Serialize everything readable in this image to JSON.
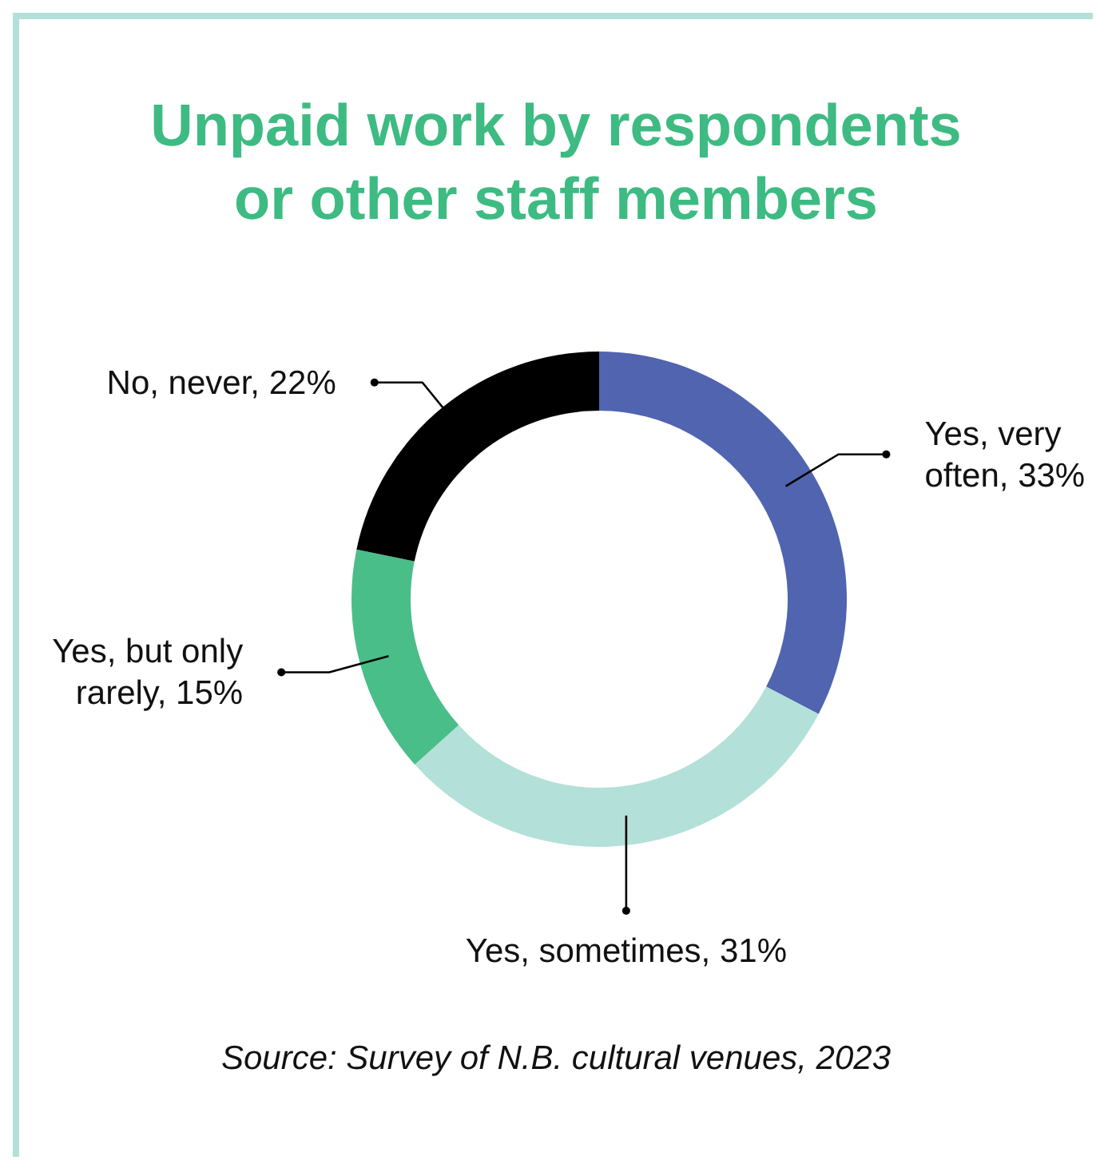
{
  "chart_data": {
    "type": "donut",
    "title": "Unpaid work by respondents or other staff members",
    "categories": [
      "Yes, very often",
      "Yes, sometimes",
      "Yes, but only rarely",
      "No, never"
    ],
    "value_labels": [
      "33%",
      "31%",
      "15%",
      "22%"
    ],
    "values": [
      33,
      31,
      15,
      22
    ],
    "colors": [
      "#5064b0",
      "#b3e0d8",
      "#4abe88",
      "#000000"
    ],
    "annotations": [
      "Source: Survey of N.B. cultural venues, 2023"
    ]
  }
}
